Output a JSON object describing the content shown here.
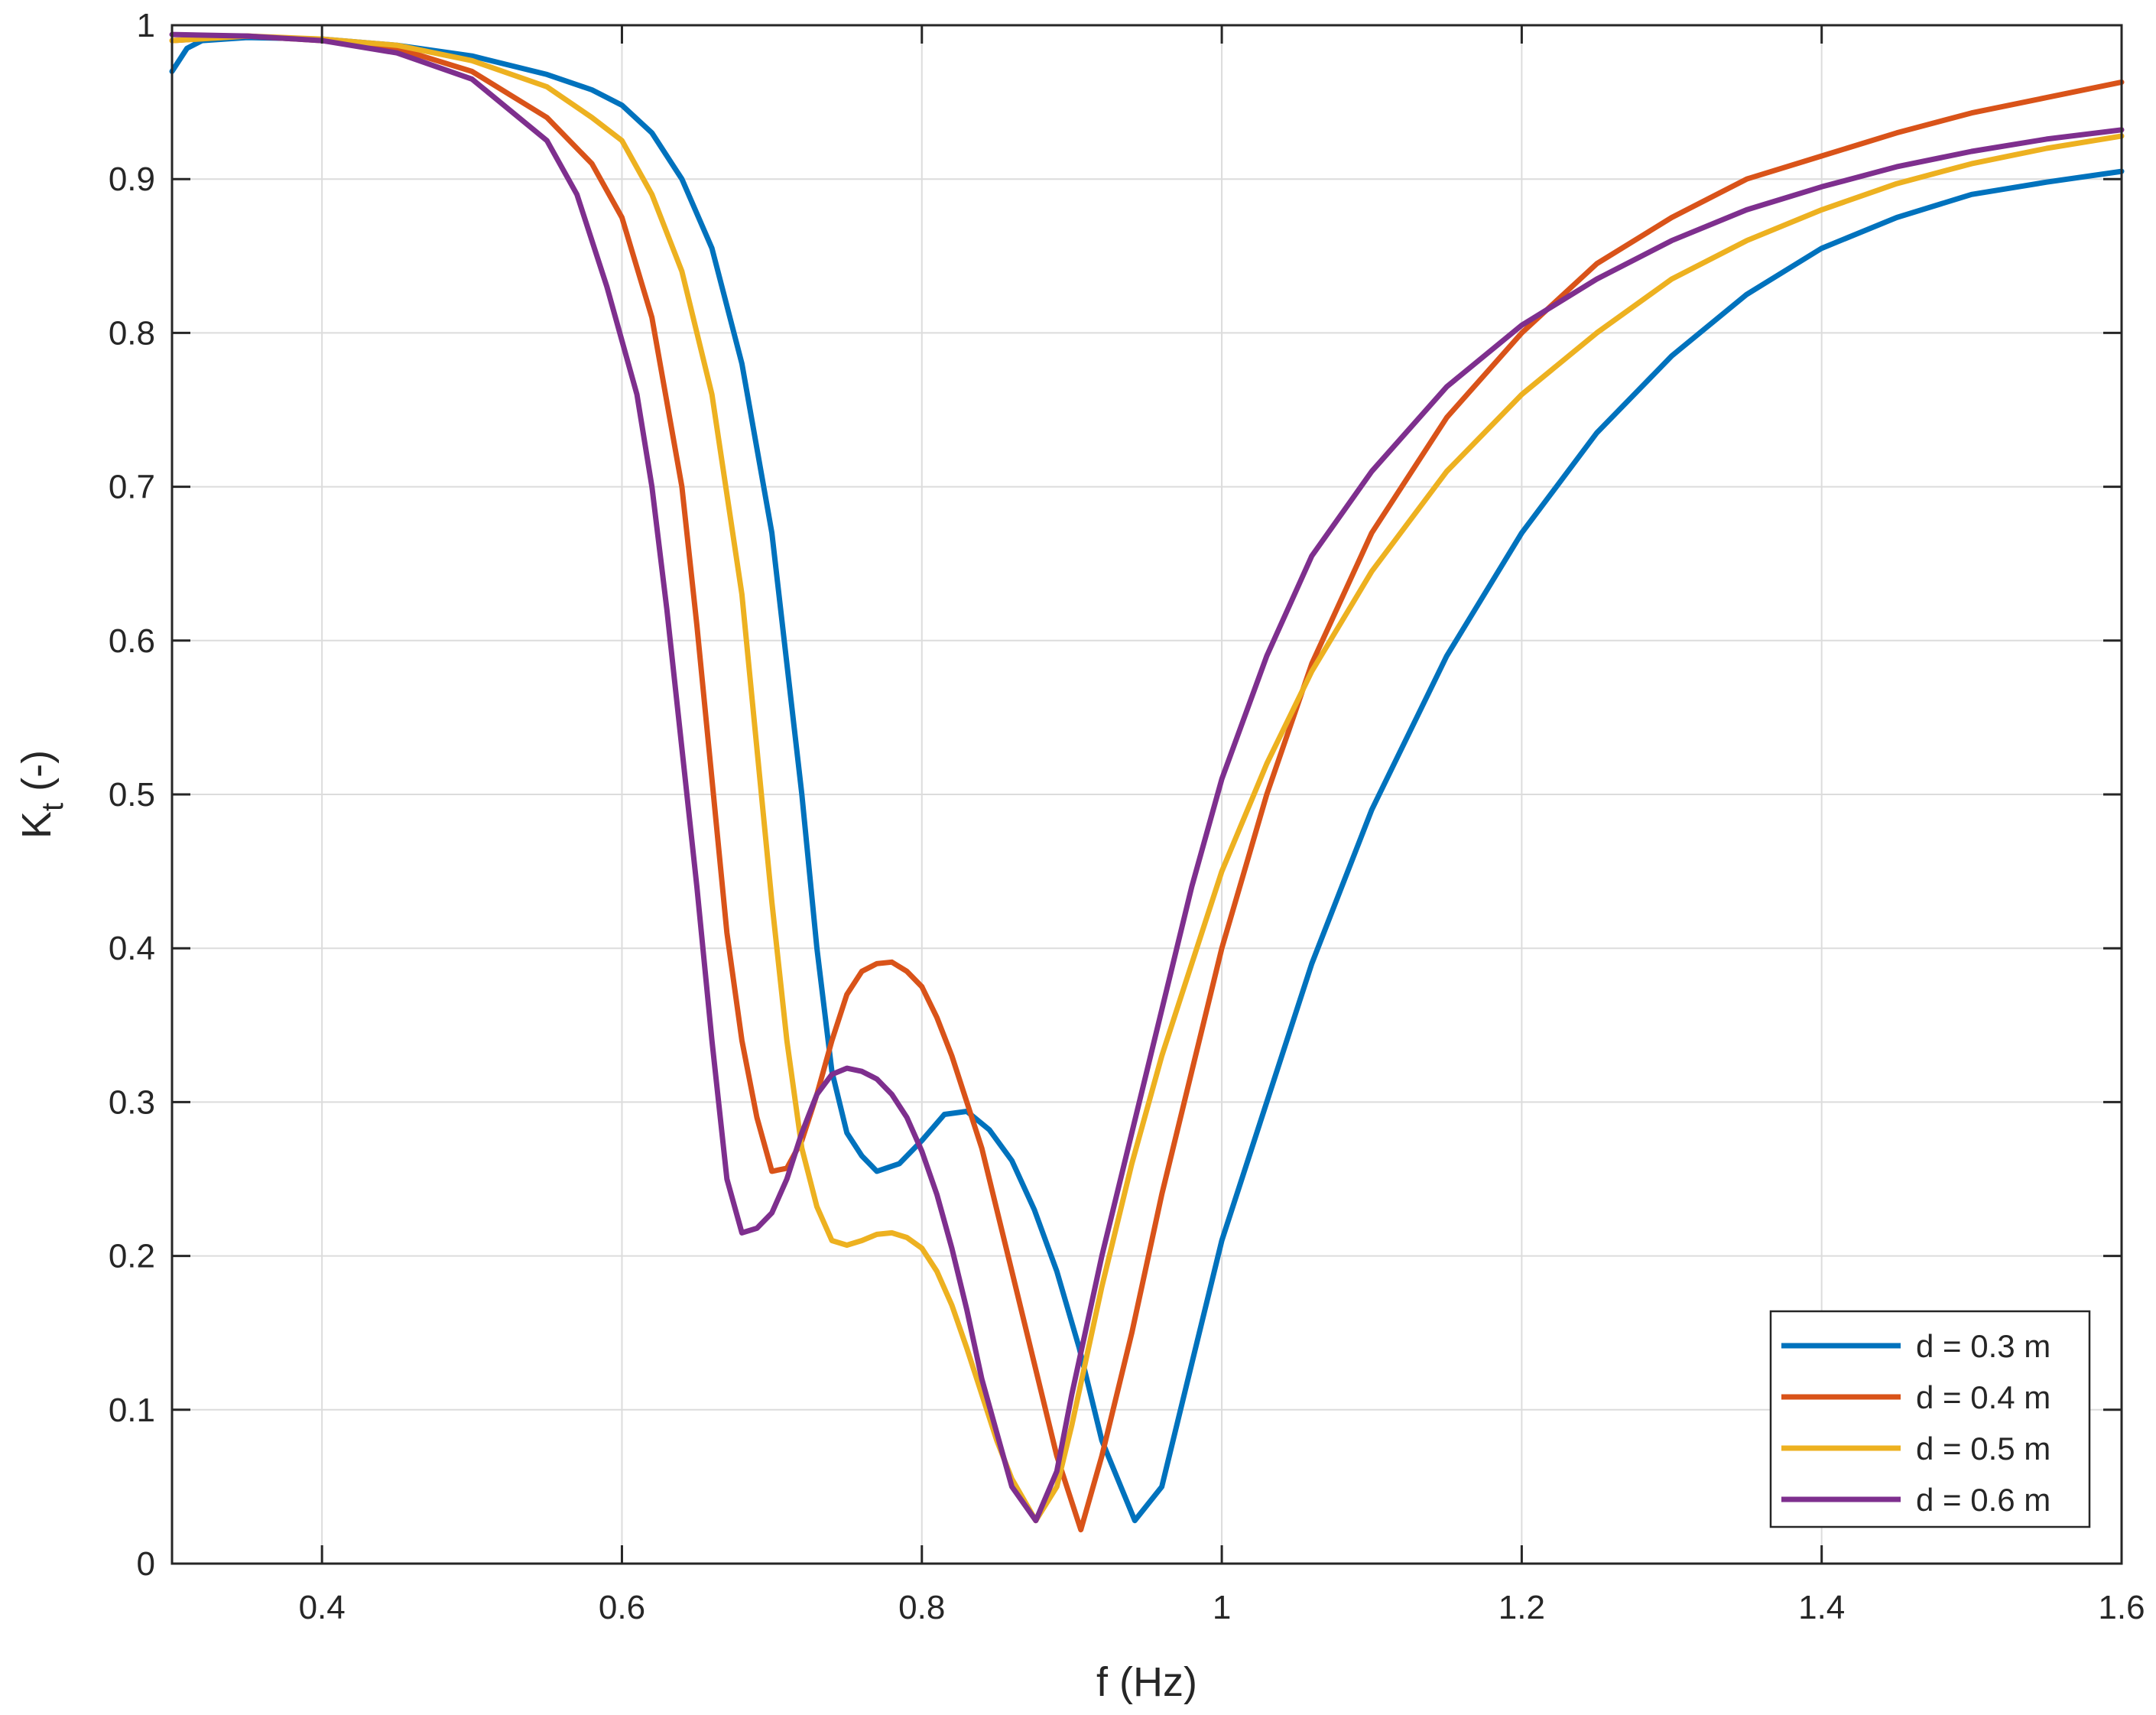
{
  "chart_data": {
    "type": "line",
    "title": "",
    "xlabel": "f (Hz)",
    "ylabel_main": "K",
    "ylabel_sub": "t",
    "ylabel_suffix": " (-)",
    "xlim": [
      0.3,
      1.6
    ],
    "ylim": [
      0,
      1
    ],
    "xticks": [
      0.4,
      0.6,
      0.8,
      1,
      1.2,
      1.4,
      1.6
    ],
    "xtick_labels": [
      "0.4",
      "0.6",
      "0.8",
      "1",
      "1.2",
      "1.4",
      "1.6"
    ],
    "yticks": [
      0,
      0.1,
      0.2,
      0.3,
      0.4,
      0.5,
      0.6,
      0.7,
      0.8,
      0.9,
      1
    ],
    "ytick_labels": [
      "0",
      "0.1",
      "0.2",
      "0.3",
      "0.4",
      "0.5",
      "0.6",
      "0.7",
      "0.8",
      "0.9",
      "1"
    ],
    "grid": true,
    "legend_position": "bottom-right",
    "series": [
      {
        "name": "d = 0.3 m",
        "color": "#0072BD",
        "x": [
          0.3,
          0.31,
          0.32,
          0.35,
          0.4,
          0.45,
          0.5,
          0.55,
          0.58,
          0.6,
          0.62,
          0.64,
          0.66,
          0.68,
          0.7,
          0.72,
          0.73,
          0.74,
          0.75,
          0.76,
          0.77,
          0.785,
          0.8,
          0.815,
          0.83,
          0.845,
          0.86,
          0.875,
          0.89,
          0.905,
          0.92,
          0.942,
          0.96,
          0.98,
          1.0,
          1.03,
          1.06,
          1.1,
          1.15,
          1.2,
          1.25,
          1.3,
          1.35,
          1.4,
          1.45,
          1.5,
          1.55,
          1.6
        ],
        "y": [
          0.97,
          0.985,
          0.99,
          0.992,
          0.991,
          0.987,
          0.98,
          0.968,
          0.958,
          0.948,
          0.93,
          0.9,
          0.855,
          0.78,
          0.67,
          0.5,
          0.4,
          0.32,
          0.28,
          0.265,
          0.255,
          0.26,
          0.275,
          0.292,
          0.294,
          0.282,
          0.262,
          0.23,
          0.19,
          0.14,
          0.08,
          0.028,
          0.05,
          0.13,
          0.21,
          0.3,
          0.39,
          0.49,
          0.59,
          0.67,
          0.735,
          0.785,
          0.825,
          0.855,
          0.875,
          0.89,
          0.898,
          0.905
        ]
      },
      {
        "name": "d = 0.4 m",
        "color": "#D95319",
        "x": [
          0.3,
          0.35,
          0.4,
          0.45,
          0.5,
          0.55,
          0.58,
          0.6,
          0.62,
          0.64,
          0.65,
          0.66,
          0.67,
          0.68,
          0.69,
          0.7,
          0.71,
          0.72,
          0.73,
          0.74,
          0.75,
          0.76,
          0.77,
          0.78,
          0.79,
          0.8,
          0.81,
          0.82,
          0.83,
          0.84,
          0.85,
          0.86,
          0.87,
          0.88,
          0.89,
          0.906,
          0.92,
          0.94,
          0.96,
          0.98,
          1.0,
          1.03,
          1.06,
          1.1,
          1.15,
          1.2,
          1.25,
          1.3,
          1.35,
          1.4,
          1.45,
          1.5,
          1.55,
          1.6
        ],
        "y": [
          0.99,
          0.993,
          0.99,
          0.985,
          0.97,
          0.94,
          0.91,
          0.875,
          0.81,
          0.7,
          0.61,
          0.51,
          0.41,
          0.34,
          0.29,
          0.255,
          0.257,
          0.275,
          0.305,
          0.34,
          0.37,
          0.385,
          0.39,
          0.391,
          0.385,
          0.375,
          0.355,
          0.33,
          0.3,
          0.27,
          0.23,
          0.19,
          0.15,
          0.11,
          0.07,
          0.022,
          0.07,
          0.15,
          0.24,
          0.32,
          0.4,
          0.5,
          0.585,
          0.67,
          0.745,
          0.8,
          0.845,
          0.875,
          0.9,
          0.915,
          0.93,
          0.943,
          0.953,
          0.963
        ]
      },
      {
        "name": "d = 0.5 m",
        "color": "#EDB120",
        "x": [
          0.3,
          0.35,
          0.4,
          0.45,
          0.5,
          0.55,
          0.58,
          0.6,
          0.62,
          0.64,
          0.66,
          0.68,
          0.69,
          0.7,
          0.71,
          0.72,
          0.73,
          0.74,
          0.75,
          0.76,
          0.77,
          0.78,
          0.79,
          0.8,
          0.81,
          0.82,
          0.83,
          0.84,
          0.85,
          0.86,
          0.876,
          0.89,
          0.9,
          0.92,
          0.94,
          0.96,
          0.98,
          1.0,
          1.03,
          1.06,
          1.1,
          1.15,
          1.2,
          1.25,
          1.3,
          1.35,
          1.4,
          1.45,
          1.5,
          1.55,
          1.6
        ],
        "y": [
          0.99,
          0.993,
          0.991,
          0.987,
          0.977,
          0.96,
          0.94,
          0.925,
          0.89,
          0.84,
          0.76,
          0.63,
          0.53,
          0.43,
          0.34,
          0.27,
          0.232,
          0.21,
          0.207,
          0.21,
          0.214,
          0.215,
          0.212,
          0.205,
          0.19,
          0.168,
          0.14,
          0.11,
          0.08,
          0.055,
          0.028,
          0.05,
          0.09,
          0.18,
          0.26,
          0.33,
          0.39,
          0.45,
          0.52,
          0.58,
          0.645,
          0.71,
          0.76,
          0.8,
          0.835,
          0.86,
          0.88,
          0.897,
          0.91,
          0.92,
          0.928
        ]
      },
      {
        "name": "d = 0.6 m",
        "color": "#7E2F8E",
        "x": [
          0.3,
          0.35,
          0.4,
          0.45,
          0.5,
          0.55,
          0.57,
          0.59,
          0.61,
          0.62,
          0.63,
          0.64,
          0.65,
          0.66,
          0.67,
          0.68,
          0.69,
          0.7,
          0.71,
          0.72,
          0.73,
          0.74,
          0.75,
          0.76,
          0.77,
          0.78,
          0.79,
          0.8,
          0.81,
          0.82,
          0.83,
          0.84,
          0.85,
          0.86,
          0.876,
          0.89,
          0.9,
          0.92,
          0.94,
          0.96,
          0.98,
          1.0,
          1.03,
          1.06,
          1.1,
          1.15,
          1.2,
          1.25,
          1.3,
          1.35,
          1.4,
          1.45,
          1.5,
          1.55,
          1.6
        ],
        "y": [
          0.994,
          0.993,
          0.99,
          0.982,
          0.965,
          0.925,
          0.89,
          0.83,
          0.76,
          0.7,
          0.62,
          0.53,
          0.44,
          0.34,
          0.25,
          0.215,
          0.218,
          0.228,
          0.25,
          0.28,
          0.305,
          0.318,
          0.322,
          0.32,
          0.315,
          0.305,
          0.29,
          0.268,
          0.24,
          0.205,
          0.165,
          0.12,
          0.085,
          0.05,
          0.028,
          0.06,
          0.11,
          0.2,
          0.28,
          0.36,
          0.44,
          0.51,
          0.59,
          0.655,
          0.71,
          0.765,
          0.805,
          0.835,
          0.86,
          0.88,
          0.895,
          0.908,
          0.918,
          0.926,
          0.932
        ]
      }
    ]
  }
}
